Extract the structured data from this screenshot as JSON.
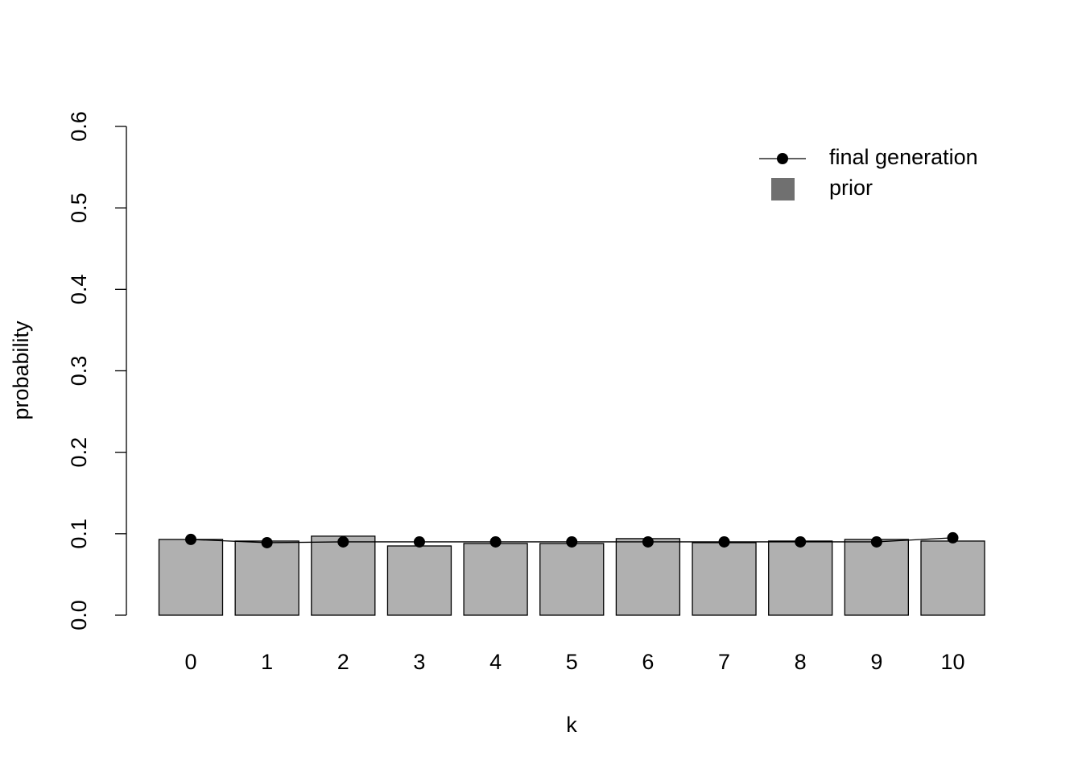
{
  "chart_data": {
    "type": "bar",
    "xlabel": "k",
    "ylabel": "probability",
    "categories": [
      "0",
      "1",
      "2",
      "3",
      "4",
      "5",
      "6",
      "7",
      "8",
      "9",
      "10"
    ],
    "series": [
      {
        "name": "prior",
        "type": "bar",
        "color": "#b0b0b0",
        "legend_color": "#707070",
        "values": [
          0.093,
          0.091,
          0.097,
          0.085,
          0.088,
          0.088,
          0.094,
          0.089,
          0.091,
          0.093,
          0.091
        ]
      },
      {
        "name": "final generation",
        "type": "line",
        "color": "#000000",
        "values": [
          0.093,
          0.089,
          0.09,
          0.09,
          0.09,
          0.09,
          0.09,
          0.09,
          0.09,
          0.09,
          0.095
        ]
      }
    ],
    "ylim": [
      0,
      0.6
    ],
    "yticks": [
      {
        "value": 0,
        "label": "0.0"
      },
      0.1,
      0.2,
      0.3,
      0.4,
      0.5,
      0.6
    ],
    "grid": false,
    "legend": "top-right"
  }
}
